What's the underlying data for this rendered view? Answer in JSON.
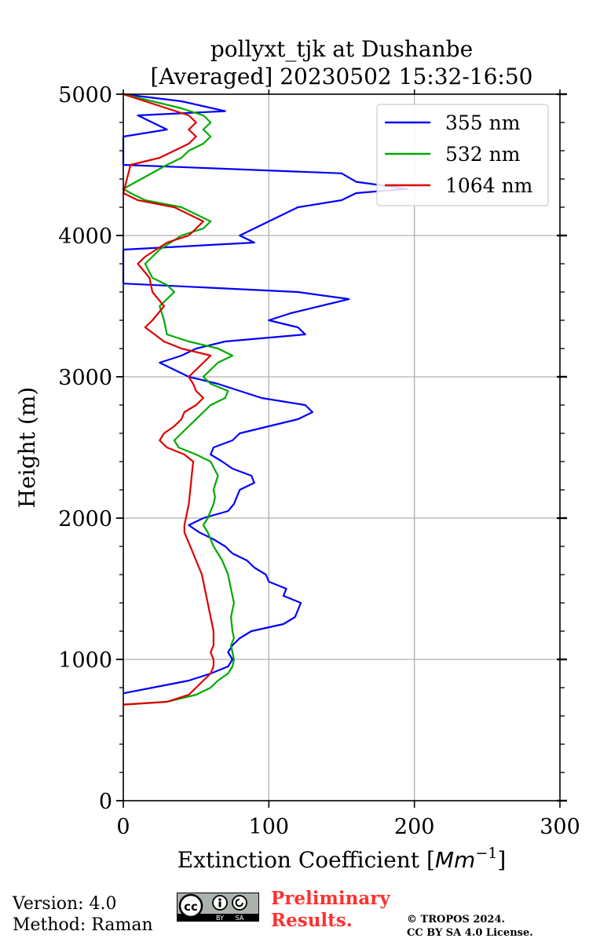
{
  "chart_data": {
    "type": "line",
    "title_line1": "pollyxt_tjk at Dushanbe",
    "title_line2": "[Averaged] 20230502 15:32-16:50",
    "xlabel": "Extinction Coefficient [",
    "xlabel_unit": "Mm",
    "xlabel_sup": "−1",
    "xlabel_end": "]",
    "ylabel": "Height (m)",
    "xlim": [
      0,
      300
    ],
    "ylim": [
      0,
      5000
    ],
    "x_ticks": [
      0,
      100,
      200,
      300
    ],
    "y_ticks": [
      0,
      1000,
      2000,
      3000,
      4000,
      5000
    ],
    "grid": true,
    "legend_position": "top-right",
    "series": [
      {
        "name": "355 nm",
        "color": "#0000ff",
        "points": [
          [
            0,
            760
          ],
          [
            20,
            800
          ],
          [
            45,
            850
          ],
          [
            60,
            900
          ],
          [
            72,
            950
          ],
          [
            75,
            1000
          ],
          [
            72,
            1050
          ],
          [
            75,
            1100
          ],
          [
            80,
            1150
          ],
          [
            88,
            1200
          ],
          [
            110,
            1250
          ],
          [
            118,
            1300
          ],
          [
            122,
            1400
          ],
          [
            110,
            1450
          ],
          [
            112,
            1500
          ],
          [
            100,
            1550
          ],
          [
            98,
            1600
          ],
          [
            90,
            1650
          ],
          [
            85,
            1700
          ],
          [
            75,
            1750
          ],
          [
            70,
            1800
          ],
          [
            62,
            1850
          ],
          [
            52,
            1900
          ],
          [
            45,
            1950
          ],
          [
            55,
            2000
          ],
          [
            72,
            2050
          ],
          [
            76,
            2100
          ],
          [
            78,
            2150
          ],
          [
            80,
            2200
          ],
          [
            90,
            2250
          ],
          [
            88,
            2300
          ],
          [
            75,
            2350
          ],
          [
            68,
            2400
          ],
          [
            60,
            2450
          ],
          [
            62,
            2500
          ],
          [
            75,
            2550
          ],
          [
            80,
            2600
          ],
          [
            100,
            2650
          ],
          [
            120,
            2700
          ],
          [
            130,
            2750
          ],
          [
            125,
            2800
          ],
          [
            95,
            2850
          ],
          [
            80,
            2900
          ],
          [
            65,
            2950
          ],
          [
            45,
            3000
          ],
          [
            35,
            3050
          ],
          [
            25,
            3100
          ],
          [
            40,
            3150
          ],
          [
            50,
            3200
          ],
          [
            70,
            3250
          ],
          [
            125,
            3300
          ],
          [
            120,
            3350
          ],
          [
            100,
            3400
          ],
          [
            115,
            3450
          ],
          [
            155,
            3550
          ],
          [
            120,
            3600
          ],
          [
            0,
            3660
          ],
          [
            0,
            3900
          ],
          [
            90,
            3950
          ],
          [
            80,
            4000
          ],
          [
            90,
            4050
          ],
          [
            100,
            4100
          ],
          [
            120,
            4200
          ],
          [
            150,
            4250
          ],
          [
            160,
            4300
          ],
          [
            195,
            4330
          ],
          [
            160,
            4380
          ],
          [
            150,
            4440
          ],
          [
            0,
            4500
          ],
          [
            0,
            4600
          ],
          [
            0,
            4700
          ],
          [
            30,
            4750
          ],
          [
            10,
            4850
          ],
          [
            70,
            4880
          ],
          [
            40,
            4950
          ],
          [
            0,
            5000
          ]
        ]
      },
      {
        "name": "532 nm",
        "color": "#00aa00",
        "points": [
          [
            0,
            680
          ],
          [
            30,
            700
          ],
          [
            50,
            750
          ],
          [
            60,
            800
          ],
          [
            65,
            850
          ],
          [
            72,
            900
          ],
          [
            75,
            950
          ],
          [
            76,
            1000
          ],
          [
            75,
            1050
          ],
          [
            74,
            1100
          ],
          [
            76,
            1150
          ],
          [
            75,
            1200
          ],
          [
            74,
            1300
          ],
          [
            76,
            1400
          ],
          [
            74,
            1500
          ],
          [
            72,
            1600
          ],
          [
            70,
            1650
          ],
          [
            68,
            1700
          ],
          [
            65,
            1750
          ],
          [
            62,
            1800
          ],
          [
            60,
            1850
          ],
          [
            58,
            1900
          ],
          [
            55,
            1950
          ],
          [
            58,
            2000
          ],
          [
            60,
            2050
          ],
          [
            62,
            2100
          ],
          [
            63,
            2150
          ],
          [
            62,
            2200
          ],
          [
            65,
            2300
          ],
          [
            60,
            2400
          ],
          [
            50,
            2450
          ],
          [
            38,
            2500
          ],
          [
            35,
            2550
          ],
          [
            40,
            2600
          ],
          [
            45,
            2650
          ],
          [
            50,
            2700
          ],
          [
            55,
            2750
          ],
          [
            60,
            2800
          ],
          [
            70,
            2850
          ],
          [
            72,
            2900
          ],
          [
            60,
            2950
          ],
          [
            55,
            3000
          ],
          [
            60,
            3050
          ],
          [
            65,
            3100
          ],
          [
            75,
            3150
          ],
          [
            65,
            3200
          ],
          [
            45,
            3250
          ],
          [
            30,
            3300
          ],
          [
            28,
            3400
          ],
          [
            25,
            3500
          ],
          [
            35,
            3600
          ],
          [
            30,
            3650
          ],
          [
            20,
            3700
          ],
          [
            15,
            3800
          ],
          [
            25,
            3900
          ],
          [
            40,
            4000
          ],
          [
            55,
            4050
          ],
          [
            60,
            4100
          ],
          [
            50,
            4150
          ],
          [
            40,
            4200
          ],
          [
            15,
            4250
          ],
          [
            5,
            4300
          ],
          [
            0,
            4330
          ],
          [
            30,
            4500
          ],
          [
            40,
            4550
          ],
          [
            45,
            4600
          ],
          [
            55,
            4650
          ],
          [
            60,
            4700
          ],
          [
            55,
            4750
          ],
          [
            60,
            4800
          ],
          [
            55,
            4850
          ],
          [
            40,
            4900
          ],
          [
            20,
            4950
          ],
          [
            0,
            5000
          ]
        ]
      },
      {
        "name": "1064 nm",
        "color": "#dd0000",
        "points": [
          [
            0,
            680
          ],
          [
            30,
            700
          ],
          [
            45,
            750
          ],
          [
            50,
            800
          ],
          [
            55,
            850
          ],
          [
            60,
            900
          ],
          [
            62,
            950
          ],
          [
            62,
            1000
          ],
          [
            60,
            1050
          ],
          [
            62,
            1100
          ],
          [
            62,
            1200
          ],
          [
            60,
            1300
          ],
          [
            58,
            1400
          ],
          [
            56,
            1500
          ],
          [
            54,
            1600
          ],
          [
            52,
            1650
          ],
          [
            50,
            1700
          ],
          [
            48,
            1750
          ],
          [
            46,
            1800
          ],
          [
            44,
            1850
          ],
          [
            42,
            1900
          ],
          [
            42,
            1950
          ],
          [
            43,
            2000
          ],
          [
            45,
            2100
          ],
          [
            46,
            2200
          ],
          [
            47,
            2300
          ],
          [
            48,
            2400
          ],
          [
            42,
            2450
          ],
          [
            30,
            2500
          ],
          [
            25,
            2550
          ],
          [
            28,
            2600
          ],
          [
            35,
            2650
          ],
          [
            40,
            2700
          ],
          [
            42,
            2750
          ],
          [
            50,
            2800
          ],
          [
            55,
            2850
          ],
          [
            50,
            2900
          ],
          [
            48,
            2950
          ],
          [
            45,
            3000
          ],
          [
            50,
            3050
          ],
          [
            55,
            3100
          ],
          [
            60,
            3150
          ],
          [
            40,
            3200
          ],
          [
            28,
            3250
          ],
          [
            15,
            3350
          ],
          [
            20,
            3400
          ],
          [
            28,
            3500
          ],
          [
            20,
            3600
          ],
          [
            18,
            3700
          ],
          [
            10,
            3800
          ],
          [
            15,
            3850
          ],
          [
            30,
            3950
          ],
          [
            45,
            4000
          ],
          [
            50,
            4050
          ],
          [
            55,
            4100
          ],
          [
            45,
            4150
          ],
          [
            35,
            4200
          ],
          [
            10,
            4250
          ],
          [
            0,
            4300
          ],
          [
            5,
            4500
          ],
          [
            25,
            4550
          ],
          [
            35,
            4600
          ],
          [
            45,
            4650
          ],
          [
            50,
            4700
          ],
          [
            45,
            4750
          ],
          [
            50,
            4800
          ],
          [
            45,
            4850
          ],
          [
            30,
            4900
          ],
          [
            15,
            4950
          ],
          [
            0,
            5000
          ]
        ]
      }
    ]
  },
  "footer": {
    "version": "Version: 4.0",
    "method": "Method: Raman",
    "license_badge_text": "cc",
    "badge_by": "BY",
    "badge_sa": "SA",
    "preliminary_line1": "Preliminary",
    "preliminary_line2": "Results.",
    "copyright_line1": "© TROPOS 2024.",
    "copyright_line2": "CC BY SA 4.0 License."
  },
  "colors": {
    "preliminary": "#ff3030",
    "grid": "#b0b0b0"
  }
}
